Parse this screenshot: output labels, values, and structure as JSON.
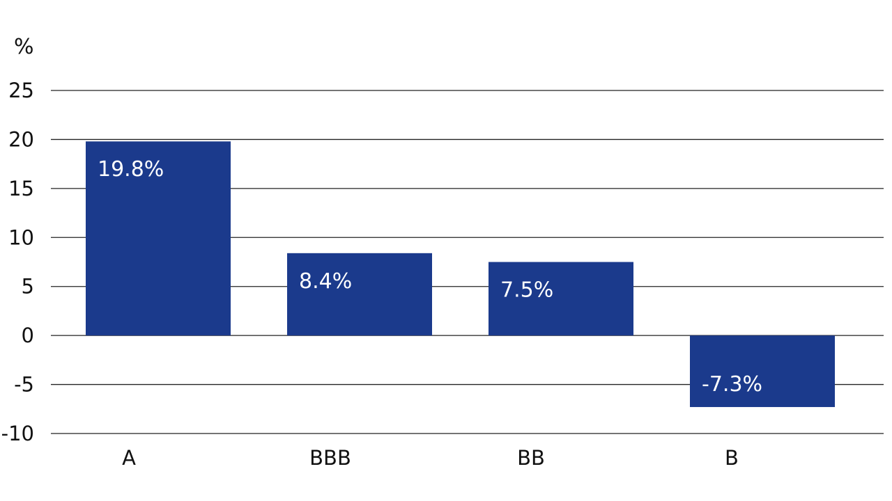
{
  "chart_data": {
    "type": "bar",
    "unit_label": "%",
    "categories": [
      "A",
      "BBB",
      "BB",
      "B"
    ],
    "values": [
      19.8,
      8.4,
      7.5,
      -7.3
    ],
    "data_labels": [
      "19.8%",
      "8.4%",
      "7.5%",
      "-7.3%"
    ],
    "ylim": [
      -10,
      25
    ],
    "yticks": [
      25,
      20,
      15,
      10,
      5,
      0,
      -5,
      -10
    ],
    "grid": true,
    "bar_color": "#1b3a8c",
    "label_color": "#ffffff",
    "axis_text_color": "#111111",
    "gridline_color": "#222222"
  }
}
